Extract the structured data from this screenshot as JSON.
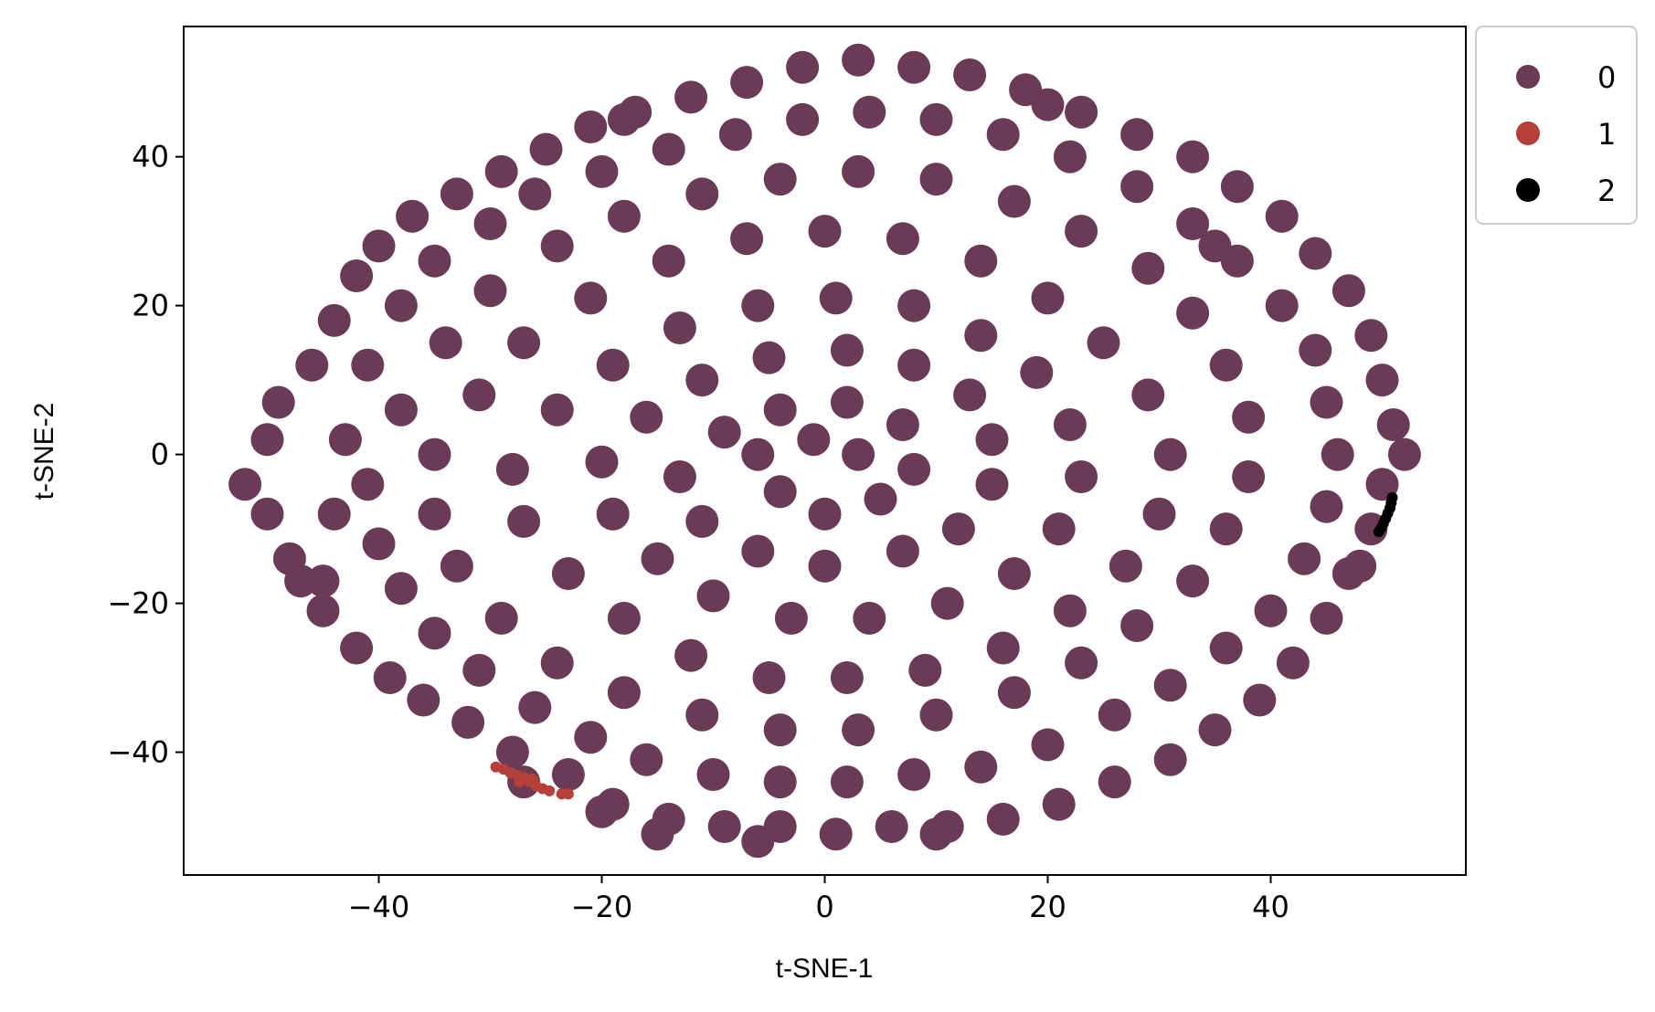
{
  "chart_data": {
    "type": "scatter",
    "title": "",
    "xlabel": "t-SNE-1",
    "ylabel": "t-SNE-2",
    "xlim": [
      -57.5,
      57.5
    ],
    "ylim": [
      -56.5,
      57.5
    ],
    "xticks": [
      -40,
      -20,
      0,
      20,
      40
    ],
    "xtick_labels": [
      "−40",
      "−20",
      "0",
      "20",
      "40"
    ],
    "yticks": [
      40,
      20,
      0,
      -20,
      -40
    ],
    "ytick_labels": [
      "40",
      "20",
      "0",
      "−20",
      "−40"
    ],
    "grid": false,
    "legend_position": "outside-upper-right",
    "series": [
      {
        "name": "0",
        "color": "#6b3a57",
        "points": [
          [
            -52,
            -4
          ],
          [
            -50,
            -8
          ],
          [
            -48,
            -14
          ],
          [
            -50,
            2
          ],
          [
            -49,
            7
          ],
          [
            -46,
            12
          ],
          [
            -44,
            18
          ],
          [
            -42,
            24
          ],
          [
            -40,
            28
          ],
          [
            -37,
            32
          ],
          [
            -33,
            35
          ],
          [
            -29,
            38
          ],
          [
            -25,
            41
          ],
          [
            -21,
            44
          ],
          [
            -17,
            46
          ],
          [
            -12,
            48
          ],
          [
            -7,
            50
          ],
          [
            -2,
            52
          ],
          [
            3,
            53
          ],
          [
            8,
            52
          ],
          [
            13,
            51
          ],
          [
            18,
            49
          ],
          [
            23,
            46
          ],
          [
            28,
            43
          ],
          [
            33,
            40
          ],
          [
            37,
            36
          ],
          [
            41,
            32
          ],
          [
            44,
            27
          ],
          [
            47,
            22
          ],
          [
            49,
            16
          ],
          [
            50,
            10
          ],
          [
            51,
            4
          ],
          [
            52,
            0
          ],
          [
            50,
            -4
          ],
          [
            49,
            -10
          ],
          [
            47,
            -16
          ],
          [
            45,
            -22
          ],
          [
            42,
            -28
          ],
          [
            39,
            -33
          ],
          [
            35,
            -37
          ],
          [
            31,
            -41
          ],
          [
            26,
            -44
          ],
          [
            21,
            -47
          ],
          [
            16,
            -49
          ],
          [
            11,
            -50
          ],
          [
            6,
            -50
          ],
          [
            1,
            -51
          ],
          [
            -4,
            -50
          ],
          [
            -9,
            -50
          ],
          [
            -14,
            -49
          ],
          [
            -19,
            -47
          ],
          [
            -23,
            -43
          ],
          [
            -28,
            -40
          ],
          [
            -32,
            -36
          ],
          [
            -36,
            -33
          ],
          [
            -39,
            -30
          ],
          [
            -42,
            -26
          ],
          [
            -45,
            -21
          ],
          [
            -47,
            -17
          ],
          [
            -44,
            -8
          ],
          [
            -43,
            2
          ],
          [
            -41,
            12
          ],
          [
            -38,
            20
          ],
          [
            -35,
            26
          ],
          [
            -30,
            31
          ],
          [
            -26,
            35
          ],
          [
            -20,
            38
          ],
          [
            -14,
            41
          ],
          [
            -8,
            43
          ],
          [
            -2,
            45
          ],
          [
            4,
            46
          ],
          [
            10,
            45
          ],
          [
            16,
            43
          ],
          [
            22,
            40
          ],
          [
            28,
            36
          ],
          [
            33,
            31
          ],
          [
            37,
            26
          ],
          [
            41,
            20
          ],
          [
            44,
            14
          ],
          [
            45,
            7
          ],
          [
            46,
            0
          ],
          [
            45,
            -7
          ],
          [
            43,
            -14
          ],
          [
            40,
            -21
          ],
          [
            36,
            -26
          ],
          [
            31,
            -31
          ],
          [
            26,
            -35
          ],
          [
            20,
            -39
          ],
          [
            14,
            -42
          ],
          [
            8,
            -43
          ],
          [
            2,
            -44
          ],
          [
            -4,
            -44
          ],
          [
            -10,
            -43
          ],
          [
            -16,
            -41
          ],
          [
            -21,
            -38
          ],
          [
            -26,
            -34
          ],
          [
            -31,
            -29
          ],
          [
            -35,
            -24
          ],
          [
            -38,
            -18
          ],
          [
            -40,
            -12
          ],
          [
            -41,
            -4
          ],
          [
            -38,
            6
          ],
          [
            -34,
            15
          ],
          [
            -30,
            22
          ],
          [
            -24,
            28
          ],
          [
            -18,
            32
          ],
          [
            -11,
            35
          ],
          [
            -4,
            37
          ],
          [
            3,
            38
          ],
          [
            10,
            37
          ],
          [
            17,
            34
          ],
          [
            23,
            30
          ],
          [
            29,
            25
          ],
          [
            33,
            19
          ],
          [
            36,
            12
          ],
          [
            38,
            5
          ],
          [
            38,
            -3
          ],
          [
            36,
            -10
          ],
          [
            33,
            -17
          ],
          [
            28,
            -23
          ],
          [
            23,
            -28
          ],
          [
            17,
            -32
          ],
          [
            10,
            -35
          ],
          [
            3,
            -37
          ],
          [
            -4,
            -37
          ],
          [
            -11,
            -35
          ],
          [
            -18,
            -32
          ],
          [
            -24,
            -28
          ],
          [
            -29,
            -22
          ],
          [
            -33,
            -15
          ],
          [
            -35,
            -8
          ],
          [
            -35,
            0
          ],
          [
            -31,
            8
          ],
          [
            -27,
            15
          ],
          [
            -21,
            21
          ],
          [
            -14,
            26
          ],
          [
            -7,
            29
          ],
          [
            0,
            30
          ],
          [
            7,
            29
          ],
          [
            14,
            26
          ],
          [
            20,
            21
          ],
          [
            25,
            15
          ],
          [
            29,
            8
          ],
          [
            31,
            0
          ],
          [
            30,
            -8
          ],
          [
            27,
            -15
          ],
          [
            22,
            -21
          ],
          [
            16,
            -26
          ],
          [
            9,
            -29
          ],
          [
            2,
            -30
          ],
          [
            -5,
            -30
          ],
          [
            -12,
            -27
          ],
          [
            -18,
            -22
          ],
          [
            -23,
            -16
          ],
          [
            -27,
            -9
          ],
          [
            -28,
            -2
          ],
          [
            -24,
            6
          ],
          [
            -19,
            12
          ],
          [
            -13,
            17
          ],
          [
            -6,
            20
          ],
          [
            1,
            21
          ],
          [
            8,
            20
          ],
          [
            14,
            16
          ],
          [
            19,
            11
          ],
          [
            22,
            4
          ],
          [
            23,
            -3
          ],
          [
            21,
            -10
          ],
          [
            17,
            -16
          ],
          [
            11,
            -20
          ],
          [
            4,
            -22
          ],
          [
            -3,
            -22
          ],
          [
            -10,
            -19
          ],
          [
            -15,
            -14
          ],
          [
            -19,
            -8
          ],
          [
            -20,
            -1
          ],
          [
            -16,
            5
          ],
          [
            -11,
            10
          ],
          [
            -5,
            13
          ],
          [
            2,
            14
          ],
          [
            8,
            12
          ],
          [
            13,
            8
          ],
          [
            15,
            2
          ],
          [
            15,
            -4
          ],
          [
            12,
            -10
          ],
          [
            7,
            -13
          ],
          [
            0,
            -15
          ],
          [
            -6,
            -13
          ],
          [
            -11,
            -9
          ],
          [
            -13,
            -3
          ],
          [
            -9,
            3
          ],
          [
            -4,
            6
          ],
          [
            2,
            7
          ],
          [
            7,
            4
          ],
          [
            8,
            -2
          ],
          [
            5,
            -6
          ],
          [
            0,
            -8
          ],
          [
            -4,
            -5
          ],
          [
            -6,
            0
          ],
          [
            -1,
            2
          ],
          [
            3,
            0
          ],
          [
            -27,
            -44
          ],
          [
            -20,
            -48
          ],
          [
            -15,
            -51
          ],
          [
            -6,
            -52
          ],
          [
            10,
            -51
          ],
          [
            -18,
            45
          ],
          [
            20,
            47
          ],
          [
            35,
            28
          ],
          [
            -45,
            -17
          ],
          [
            48,
            -15
          ]
        ]
      },
      {
        "name": "1",
        "color": "#b5403a",
        "points": [
          [
            -29.5,
            -42
          ],
          [
            -28.8,
            -42.3
          ],
          [
            -28.2,
            -42.8
          ],
          [
            -27.6,
            -43.1
          ],
          [
            -27.0,
            -43.4
          ],
          [
            -26.5,
            -44.0
          ],
          [
            -25.9,
            -44.5
          ],
          [
            -25.3,
            -44.9
          ],
          [
            -24.7,
            -45.2
          ],
          [
            -23.6,
            -45.6
          ],
          [
            -23.0,
            -45.6
          ],
          [
            -27.4,
            -44.0
          ],
          [
            -26.2,
            -43.6
          ]
        ]
      },
      {
        "name": "2",
        "color": "#000000",
        "points": [
          [
            50.9,
            -5.8
          ],
          [
            50.8,
            -6.5
          ],
          [
            50.7,
            -7.2
          ],
          [
            50.5,
            -7.9
          ],
          [
            50.3,
            -8.6
          ],
          [
            50.1,
            -9.3
          ],
          [
            49.9,
            -9.9
          ],
          [
            49.7,
            -10.4
          ]
        ]
      }
    ]
  }
}
